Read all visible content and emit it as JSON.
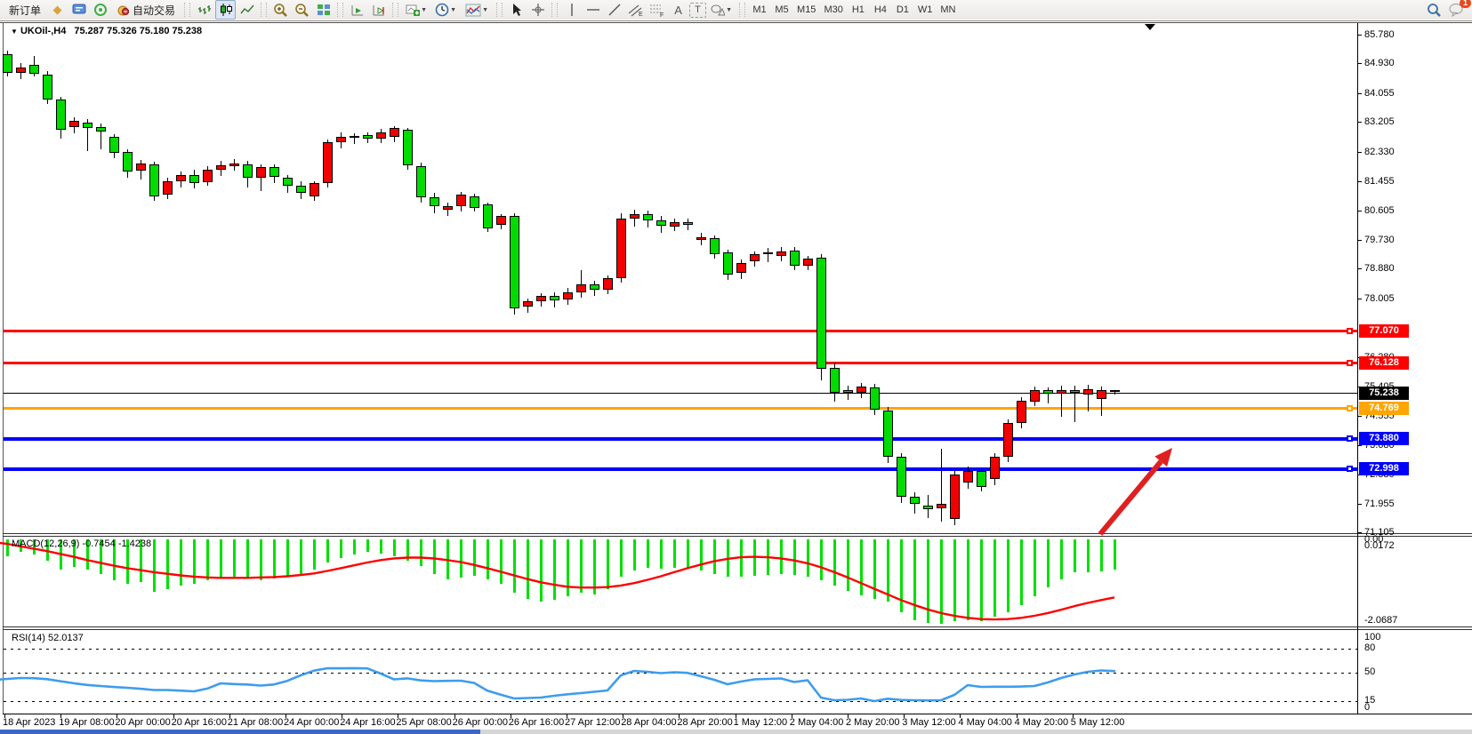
{
  "toolbar": {
    "new_order": "新订单",
    "auto_trading": "自动交易",
    "timeframes": [
      "M1",
      "M5",
      "M15",
      "M30",
      "H1",
      "H4",
      "D1",
      "W1",
      "MN"
    ],
    "selected_timeframe": "H4",
    "notification_badge": "1",
    "icon_glyphs": {
      "history_diamond": "◆",
      "dropdown_caret": "▼",
      "text_tool": "A",
      "label_tool": "T"
    }
  },
  "symbol_bar": {
    "dropdown_icon": "▼",
    "symbol_period": "UKOil-,H4",
    "quote": "75.287 75.326 75.180 75.238"
  },
  "indicators": {
    "macd_label": "MACD(12,26,9) -0.7454 -1.4238",
    "rsi_label": "RSI(14) 52.0137",
    "macd_axis_zero": "0.00",
    "macd_axis_max": "0.0172",
    "macd_axis_min": "-2.0687"
  },
  "chart_data": {
    "type": "candlestick",
    "symbol": "UKOil-",
    "timeframe": "H4",
    "quote": {
      "open": 75.287,
      "high": 75.326,
      "low": 75.18,
      "close": 75.238
    },
    "up_color": "#f20000",
    "down_color": "#00dc00",
    "y_axis_ticks": [
      "85.780",
      "84.930",
      "84.055",
      "83.205",
      "82.330",
      "81.455",
      "80.605",
      "79.730",
      "78.880",
      "78.005",
      "76.280",
      "75.405",
      "74.555",
      "73.680",
      "72.830",
      "71.955",
      "71.105"
    ],
    "levels": [
      {
        "label": "77.070",
        "price": 77.07,
        "color": "#ff0000",
        "width": 3,
        "current": false
      },
      {
        "label": "76.128",
        "price": 76.128,
        "color": "#ff0000",
        "width": 3,
        "current": false
      },
      {
        "label": "75.238",
        "price": 75.238,
        "color": "#000000",
        "width": 1,
        "current": true
      },
      {
        "label": "74.769",
        "price": 74.769,
        "color": "#ffa500",
        "width": 3,
        "current": false
      },
      {
        "label": "73.880",
        "price": 73.88,
        "color": "#0000ff",
        "width": 4,
        "current": false
      },
      {
        "label": "72.998",
        "price": 72.998,
        "color": "#0000ff",
        "width": 4,
        "current": false
      }
    ],
    "x_labels": [
      "18 Apr 2023",
      "19 Apr 08:00",
      "20 Apr 00:00",
      "20 Apr 16:00",
      "21 Apr 08:00",
      "24 Apr 00:00",
      "24 Apr 16:00",
      "25 Apr 08:00",
      "26 Apr 00:00",
      "26 Apr 16:00",
      "27 Apr 12:00",
      "28 Apr 04:00",
      "28 Apr 20:00",
      "1 May 12:00",
      "2 May 04:00",
      "2 May 20:00",
      "3 May 12:00",
      "4 May 04:00",
      "4 May 20:00",
      "5 May 12:00"
    ],
    "candles": [
      [
        85.25,
        85.35,
        84.6,
        84.98
      ],
      [
        85.2,
        85.32,
        84.55,
        84.65
      ],
      [
        84.63,
        84.95,
        84.48,
        84.8
      ],
      [
        84.88,
        85.15,
        84.55,
        84.62
      ],
      [
        84.58,
        84.72,
        83.74,
        83.85
      ],
      [
        83.86,
        83.96,
        82.72,
        82.95
      ],
      [
        83.05,
        83.36,
        82.88,
        83.22
      ],
      [
        83.18,
        83.3,
        82.35,
        83.0
      ],
      [
        83.05,
        83.17,
        82.4,
        82.9
      ],
      [
        82.74,
        82.86,
        82.15,
        82.28
      ],
      [
        82.3,
        82.42,
        81.58,
        81.73
      ],
      [
        81.76,
        82.1,
        81.52,
        81.96
      ],
      [
        81.93,
        82.05,
        80.88,
        81.0
      ],
      [
        81.05,
        81.58,
        80.95,
        81.45
      ],
      [
        81.45,
        81.76,
        81.28,
        81.62
      ],
      [
        81.62,
        81.82,
        81.25,
        81.4
      ],
      [
        81.42,
        81.92,
        81.33,
        81.78
      ],
      [
        81.78,
        82.06,
        81.63,
        81.92
      ],
      [
        81.9,
        82.12,
        81.78,
        81.98
      ],
      [
        81.95,
        82.06,
        81.28,
        81.55
      ],
      [
        81.55,
        81.96,
        81.18,
        81.85
      ],
      [
        81.85,
        81.96,
        81.42,
        81.58
      ],
      [
        81.55,
        81.66,
        81.12,
        81.3
      ],
      [
        81.3,
        81.46,
        80.94,
        81.1
      ],
      [
        81.0,
        81.48,
        80.9,
        81.38
      ],
      [
        81.38,
        82.7,
        81.3,
        82.6
      ],
      [
        82.6,
        82.92,
        82.44,
        82.76
      ],
      [
        82.72,
        82.88,
        82.56,
        82.78
      ],
      [
        82.8,
        82.92,
        82.6,
        82.7
      ],
      [
        82.7,
        83.02,
        82.58,
        82.88
      ],
      [
        82.74,
        83.08,
        82.62,
        83.01
      ],
      [
        82.95,
        83.04,
        81.82,
        81.9
      ],
      [
        81.9,
        82.02,
        80.85,
        80.98
      ],
      [
        80.98,
        81.14,
        80.52,
        80.7
      ],
      [
        80.6,
        80.84,
        80.46,
        80.72
      ],
      [
        80.7,
        81.16,
        80.58,
        81.05
      ],
      [
        81.0,
        81.1,
        80.58,
        80.66
      ],
      [
        80.75,
        80.85,
        79.98,
        80.06
      ],
      [
        80.17,
        80.5,
        80.05,
        80.42
      ],
      [
        80.42,
        80.52,
        77.54,
        77.7
      ],
      [
        77.76,
        78.02,
        77.58,
        77.9
      ],
      [
        77.9,
        78.16,
        77.78,
        78.06
      ],
      [
        78.06,
        78.2,
        77.76,
        77.92
      ],
      [
        77.95,
        78.32,
        77.84,
        78.18
      ],
      [
        78.18,
        78.86,
        78.04,
        78.4
      ],
      [
        78.4,
        78.54,
        78.1,
        78.25
      ],
      [
        78.25,
        78.7,
        78.14,
        78.58
      ],
      [
        78.58,
        80.52,
        78.48,
        80.35
      ],
      [
        80.35,
        80.64,
        80.14,
        80.48
      ],
      [
        80.48,
        80.6,
        80.1,
        80.3
      ],
      [
        80.3,
        80.44,
        79.94,
        80.12
      ],
      [
        80.12,
        80.38,
        80.0,
        80.25
      ],
      [
        80.25,
        80.36,
        80.02,
        80.15
      ],
      [
        79.72,
        79.94,
        79.58,
        79.8
      ],
      [
        79.78,
        79.86,
        79.18,
        79.3
      ],
      [
        79.34,
        79.46,
        78.56,
        78.7
      ],
      [
        78.74,
        79.16,
        78.6,
        79.03
      ],
      [
        79.08,
        79.4,
        78.96,
        79.29
      ],
      [
        79.32,
        79.5,
        79.08,
        79.36
      ],
      [
        79.24,
        79.52,
        79.12,
        79.37
      ],
      [
        79.4,
        79.54,
        78.84,
        78.96
      ],
      [
        78.96,
        79.28,
        78.84,
        79.16
      ],
      [
        79.2,
        79.32,
        75.6,
        75.92
      ],
      [
        75.94,
        76.12,
        74.98,
        75.21
      ],
      [
        75.28,
        75.44,
        75.04,
        75.22
      ],
      [
        75.22,
        75.52,
        75.08,
        75.4
      ],
      [
        75.38,
        75.5,
        74.58,
        74.72
      ],
      [
        74.7,
        74.82,
        73.18,
        73.32
      ],
      [
        73.32,
        73.46,
        71.98,
        72.14
      ],
      [
        72.14,
        72.32,
        71.68,
        71.93
      ],
      [
        71.9,
        72.24,
        71.55,
        71.78
      ],
      [
        71.82,
        73.6,
        71.45,
        71.95
      ],
      [
        71.48,
        72.94,
        71.34,
        72.8
      ],
      [
        72.58,
        73.06,
        72.42,
        72.92
      ],
      [
        72.92,
        73.02,
        72.32,
        72.45
      ],
      [
        72.66,
        73.46,
        72.52,
        73.32
      ],
      [
        73.32,
        74.46,
        73.2,
        74.32
      ],
      [
        74.32,
        75.1,
        74.2,
        74.97
      ],
      [
        74.95,
        75.42,
        74.84,
        75.29
      ],
      [
        75.29,
        75.4,
        74.92,
        75.18
      ],
      [
        75.18,
        75.44,
        74.52,
        75.3
      ],
      [
        75.3,
        75.46,
        74.38,
        75.2
      ],
      [
        75.15,
        75.48,
        74.68,
        75.32
      ],
      [
        75.02,
        75.42,
        74.55,
        75.28
      ],
      [
        75.287,
        75.326,
        75.18,
        75.238
      ]
    ],
    "macd": {
      "params": "12,26,9",
      "main_current": -0.7454,
      "signal_current": -1.4238,
      "axis_max": 0.0172,
      "axis_min": -2.0687,
      "histogram": [
        -0.45,
        -0.4,
        -0.29,
        -0.36,
        -0.51,
        -0.73,
        -0.67,
        -0.73,
        -0.84,
        -1.0,
        -1.09,
        -1.04,
        -1.29,
        -1.22,
        -1.13,
        -1.09,
        -1.0,
        -0.96,
        -0.91,
        -0.96,
        -1.0,
        -0.96,
        -0.91,
        -0.84,
        -0.73,
        -0.56,
        -0.44,
        -0.36,
        -0.29,
        -0.33,
        -0.4,
        -0.51,
        -0.64,
        -0.84,
        -0.98,
        -0.93,
        -0.89,
        -0.98,
        -1.09,
        -1.31,
        -1.47,
        -1.53,
        -1.49,
        -1.4,
        -1.31,
        -1.36,
        -1.22,
        -0.91,
        -0.76,
        -0.69,
        -0.71,
        -0.69,
        -0.71,
        -0.76,
        -0.84,
        -0.91,
        -0.91,
        -0.89,
        -0.87,
        -0.84,
        -0.87,
        -0.91,
        -1.0,
        -1.13,
        -1.27,
        -1.38,
        -1.47,
        -1.53,
        -1.8,
        -1.98,
        -2.05,
        -2.0687,
        -2.02,
        -1.98,
        -2.0,
        -1.91,
        -1.8,
        -1.62,
        -1.4,
        -1.18,
        -0.98,
        -0.8,
        -0.8,
        -0.78,
        -0.7454
      ],
      "signal": [
        -0.06,
        -0.1,
        -0.16,
        -0.22,
        -0.28,
        -0.35,
        -0.42,
        -0.5,
        -0.57,
        -0.64,
        -0.7,
        -0.75,
        -0.8,
        -0.84,
        -0.88,
        -0.91,
        -0.93,
        -0.94,
        -0.94,
        -0.94,
        -0.93,
        -0.92,
        -0.9,
        -0.87,
        -0.83,
        -0.77,
        -0.7,
        -0.63,
        -0.56,
        -0.5,
        -0.46,
        -0.44,
        -0.44,
        -0.46,
        -0.5,
        -0.55,
        -0.62,
        -0.7,
        -0.79,
        -0.88,
        -0.97,
        -1.05,
        -1.11,
        -1.16,
        -1.18,
        -1.18,
        -1.17,
        -1.13,
        -1.07,
        -0.99,
        -0.9,
        -0.8,
        -0.7,
        -0.61,
        -0.53,
        -0.47,
        -0.43,
        -0.42,
        -0.43,
        -0.46,
        -0.51,
        -0.58,
        -0.68,
        -0.8,
        -0.93,
        -1.07,
        -1.21,
        -1.35,
        -1.49,
        -1.61,
        -1.72,
        -1.81,
        -1.88,
        -1.93,
        -1.96,
        -1.97,
        -1.96,
        -1.93,
        -1.88,
        -1.81,
        -1.73,
        -1.64,
        -1.56,
        -1.49,
        -1.4238
      ],
      "signal_color": "#ff0000",
      "histogram_color": "#00e000"
    },
    "rsi": {
      "period": 14,
      "current": 52.0137,
      "levels": [
        80,
        50,
        15
      ],
      "axis_labels": [
        "100",
        "80",
        "50",
        "15",
        "0"
      ],
      "line_color": "#3e9ced",
      "values": [
        41.0,
        42.4,
        43.5,
        43.2,
        42.0,
        39.5,
        37.0,
        35.0,
        33.6,
        32.4,
        31.5,
        30.3,
        28.7,
        28.7,
        28.0,
        27.1,
        30.5,
        36.9,
        36.0,
        35.5,
        34.2,
        35.5,
        40.0,
        46.7,
        52.5,
        55.5,
        55.3,
        55.6,
        55.2,
        48.9,
        41.8,
        43.0,
        40.5,
        39.6,
        40.0,
        40.2,
        37.5,
        28.0,
        23.0,
        18.4,
        18.9,
        19.5,
        21.6,
        23.5,
        24.9,
        26.5,
        28.2,
        46.7,
        52.2,
        51.1,
        49.5,
        50.5,
        49.8,
        45.6,
        41.3,
        35.8,
        39.1,
        41.8,
        42.4,
        42.9,
        38.5,
        40.7,
        19.5,
        16.2,
        16.7,
        18.4,
        15.1,
        18.0,
        16.5,
        16.2,
        16.0,
        16.2,
        22.7,
        34.7,
        32.5,
        32.8,
        32.8,
        33.0,
        33.6,
        38.0,
        43.5,
        47.8,
        51.1,
        52.7,
        52.0
      ]
    },
    "annotation_arrow": {
      "from": [
        1237,
        601
      ],
      "to": [
        1318,
        504
      ],
      "color": "#e02020"
    }
  }
}
